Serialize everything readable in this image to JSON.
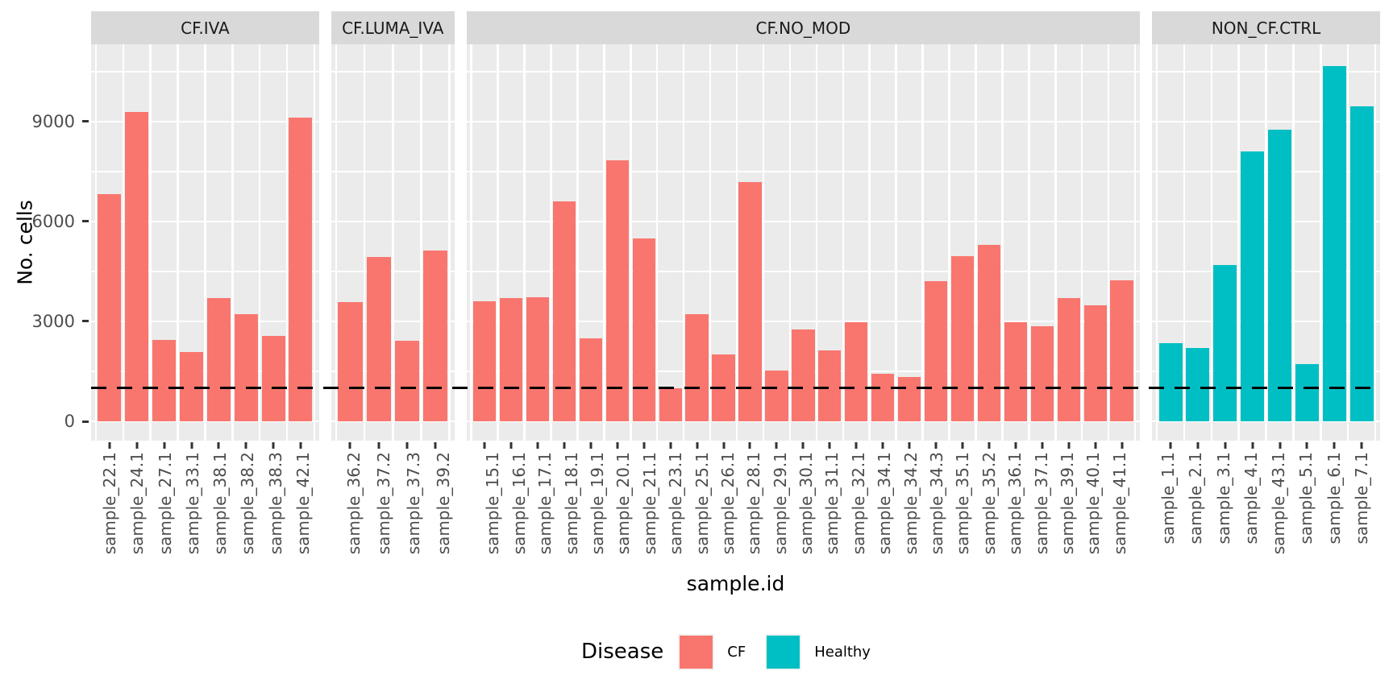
{
  "chart_data": {
    "type": "bar",
    "title": "",
    "xlabel": "sample.id",
    "ylabel": "No. cells",
    "ylim": [
      -580,
      11320
    ],
    "yticks": [
      0,
      3000,
      6000,
      9000
    ],
    "minor_gridlines": [
      1500,
      4500,
      7500,
      10500
    ],
    "major_gridlines": [
      0,
      3000,
      6000,
      9000
    ],
    "grid": true,
    "legend_position": "bottom",
    "hline": {
      "value": 1000,
      "style": "dashed",
      "color": "#000000"
    },
    "legend": {
      "title": "Disease",
      "entries": [
        {
          "label": "CF",
          "color": "#F8766D"
        },
        {
          "label": "Healthy",
          "color": "#00BFC4"
        }
      ]
    },
    "colors": {
      "CF": "#F8766D",
      "Healthy": "#00BFC4"
    },
    "panel_bg": "#EBEBEB",
    "strip_bg": "#D9D9D9",
    "facets": [
      {
        "label": "CF.IVA",
        "disease": "CF",
        "categories": [
          "sample_22.1",
          "sample_24.1",
          "sample_27.1",
          "sample_33.1",
          "sample_38.1",
          "sample_38.2",
          "sample_38.3",
          "sample_42.1"
        ],
        "values": [
          6820,
          9290,
          2440,
          2090,
          3690,
          3210,
          2570,
          9120
        ]
      },
      {
        "label": "CF.LUMA_IVA",
        "disease": "CF",
        "categories": [
          "sample_36.2",
          "sample_37.2",
          "sample_37.3",
          "sample_39.2"
        ],
        "values": [
          3580,
          4940,
          2430,
          5140
        ]
      },
      {
        "label": "CF.NO_MOD",
        "disease": "CF",
        "categories": [
          "sample_15.1",
          "sample_16.1",
          "sample_17.1",
          "sample_18.1",
          "sample_19.1",
          "sample_20.1",
          "sample_21.1",
          "sample_23.1",
          "sample_25.1",
          "sample_26.1",
          "sample_28.1",
          "sample_29.1",
          "sample_30.1",
          "sample_31.1",
          "sample_32.1",
          "sample_34.1",
          "sample_34.2",
          "sample_34.3",
          "sample_35.1",
          "sample_35.2",
          "sample_36.1",
          "sample_37.1",
          "sample_39.1",
          "sample_40.1",
          "sample_41.1"
        ],
        "values": [
          3600,
          3690,
          3730,
          6600,
          2490,
          7840,
          5480,
          1000,
          3230,
          2010,
          7180,
          1520,
          2770,
          2130,
          2970,
          1440,
          1320,
          4200,
          4960,
          5290,
          2980,
          2850,
          3700,
          3480,
          4230
        ]
      },
      {
        "label": "NON_CF.CTRL",
        "disease": "Healthy",
        "categories": [
          "sample_1.1",
          "sample_2.1",
          "sample_3.1",
          "sample_4.1",
          "sample_43.1",
          "sample_5.1",
          "sample_6.1",
          "sample_7.1"
        ],
        "values": [
          2350,
          2210,
          4690,
          8100,
          8760,
          1730,
          10660,
          9470
        ]
      }
    ]
  }
}
